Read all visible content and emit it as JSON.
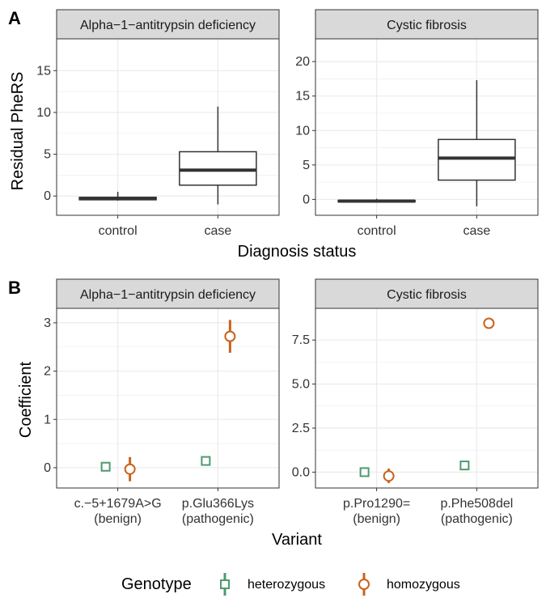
{
  "panel_a": {
    "tag": "A",
    "ylabel": "Residual PheRS",
    "xlabel": "Diagnosis status",
    "facets": [
      {
        "strip": "Alpha−1−antitrypsin deficiency",
        "ylim": [
          -2.3,
          18.8
        ],
        "yticks": [
          0,
          5,
          10,
          15
        ],
        "categories": [
          "control",
          "case"
        ],
        "boxes": [
          {
            "category": "control",
            "whisker_low": -0.55,
            "q1": -0.45,
            "median": -0.3,
            "q3": -0.15,
            "whisker_high": 0.5
          },
          {
            "category": "case",
            "whisker_low": -1.0,
            "q1": 1.3,
            "median": 3.1,
            "q3": 5.3,
            "whisker_high": 10.7
          }
        ]
      },
      {
        "strip": "Cystic fibrosis",
        "ylim": [
          -2.3,
          23.3
        ],
        "yticks": [
          0,
          5,
          10,
          15,
          20
        ],
        "categories": [
          "control",
          "case"
        ],
        "boxes": [
          {
            "category": "control",
            "whisker_low": -0.4,
            "q1": -0.35,
            "median": -0.25,
            "q3": -0.15,
            "whisker_high": 0.1
          },
          {
            "category": "case",
            "whisker_low": -1.0,
            "q1": 2.8,
            "median": 6.0,
            "q3": 8.7,
            "whisker_high": 17.3
          }
        ]
      }
    ]
  },
  "panel_b": {
    "tag": "B",
    "ylabel": "Coefficient",
    "xlabel": "Variant",
    "facets": [
      {
        "strip": "Alpha−1−antitrypsin deficiency",
        "ylim": [
          -0.42,
          3.3
        ],
        "yticks": [
          0,
          1,
          2,
          3
        ],
        "categories": [
          {
            "line1": "c.−5+1679A>G",
            "line2": "(benign)"
          },
          {
            "line1": "p.Glu366Lys",
            "line2": "(pathogenic)"
          }
        ],
        "points": [
          {
            "variant": 0,
            "genotype": "heterozygous",
            "y": 0.02,
            "lo": -0.02,
            "hi": 0.06
          },
          {
            "variant": 0,
            "genotype": "homozygous",
            "y": -0.03,
            "lo": -0.28,
            "hi": 0.22
          },
          {
            "variant": 1,
            "genotype": "heterozygous",
            "y": 0.14,
            "lo": 0.09,
            "hi": 0.19
          },
          {
            "variant": 1,
            "genotype": "homozygous",
            "y": 2.72,
            "lo": 2.38,
            "hi": 3.06
          }
        ]
      },
      {
        "strip": "Cystic fibrosis",
        "ylim": [
          -0.9,
          9.3
        ],
        "yticks": [
          "0.0",
          "2.5",
          "5.0",
          "7.5"
        ],
        "ytick_values": [
          0,
          2.5,
          5,
          7.5
        ],
        "categories": [
          {
            "line1": "p.Pro1290=",
            "line2": "(benign)"
          },
          {
            "line1": "p.Phe508del",
            "line2": "(pathogenic)"
          }
        ],
        "points": [
          {
            "variant": 0,
            "genotype": "heterozygous",
            "y": 0.0,
            "lo": -0.05,
            "hi": 0.05
          },
          {
            "variant": 0,
            "genotype": "homozygous",
            "y": -0.22,
            "lo": -0.62,
            "hi": 0.2
          },
          {
            "variant": 1,
            "genotype": "heterozygous",
            "y": 0.38,
            "lo": 0.32,
            "hi": 0.44
          },
          {
            "variant": 1,
            "genotype": "homozygous",
            "y": 8.45,
            "lo": 8.2,
            "hi": 8.7
          }
        ]
      }
    ]
  },
  "legend": {
    "title": "Genotype",
    "items": [
      {
        "label": "heterozygous",
        "color": "#4e9a6f",
        "shape": "square"
      },
      {
        "label": "homozygous",
        "color": "#c8631c",
        "shape": "circle"
      }
    ]
  },
  "colors": {
    "heterozygous": "#4e9a6f",
    "homozygous": "#c8631c",
    "strip_fill": "#d9d9d9",
    "grid": "#ebebeb",
    "box": "#333333"
  },
  "chart_data": [
    {
      "type": "box",
      "title": "Alpha−1−antitrypsin deficiency",
      "xlabel": "Diagnosis status",
      "ylabel": "Residual PheRS",
      "categories": [
        "control",
        "case"
      ],
      "series": [
        {
          "values": [
            {
              "min": -0.55,
              "q1": -0.45,
              "median": -0.3,
              "q3": -0.15,
              "max": 0.5
            },
            {
              "min": -1.0,
              "q1": 1.3,
              "median": 3.1,
              "q3": 5.3,
              "max": 10.7
            }
          ]
        }
      ],
      "ylim": [
        -2.3,
        18.8
      ]
    },
    {
      "type": "box",
      "title": "Cystic fibrosis",
      "xlabel": "Diagnosis status",
      "ylabel": "Residual PheRS",
      "categories": [
        "control",
        "case"
      ],
      "series": [
        {
          "values": [
            {
              "min": -0.4,
              "q1": -0.35,
              "median": -0.25,
              "q3": -0.15,
              "max": 0.1
            },
            {
              "min": -1.0,
              "q1": 2.8,
              "median": 6.0,
              "q3": 8.7,
              "max": 17.3
            }
          ]
        }
      ],
      "ylim": [
        -2.3,
        23.3
      ]
    },
    {
      "type": "scatter",
      "title": "Alpha−1−antitrypsin deficiency",
      "xlabel": "Variant",
      "ylabel": "Coefficient",
      "categories": [
        "c.−5+1679A>G (benign)",
        "p.Glu366Lys (pathogenic)"
      ],
      "series": [
        {
          "name": "heterozygous",
          "values": [
            0.02,
            0.14
          ]
        },
        {
          "name": "homozygous",
          "values": [
            -0.03,
            2.72
          ]
        }
      ],
      "ylim": [
        -0.42,
        3.3
      ]
    },
    {
      "type": "scatter",
      "title": "Cystic fibrosis",
      "xlabel": "Variant",
      "ylabel": "Coefficient",
      "categories": [
        "p.Pro1290= (benign)",
        "p.Phe508del (pathogenic)"
      ],
      "series": [
        {
          "name": "heterozygous",
          "values": [
            0.0,
            0.38
          ]
        },
        {
          "name": "homozygous",
          "values": [
            -0.22,
            8.45
          ]
        }
      ],
      "ylim": [
        -0.9,
        9.3
      ]
    }
  ]
}
